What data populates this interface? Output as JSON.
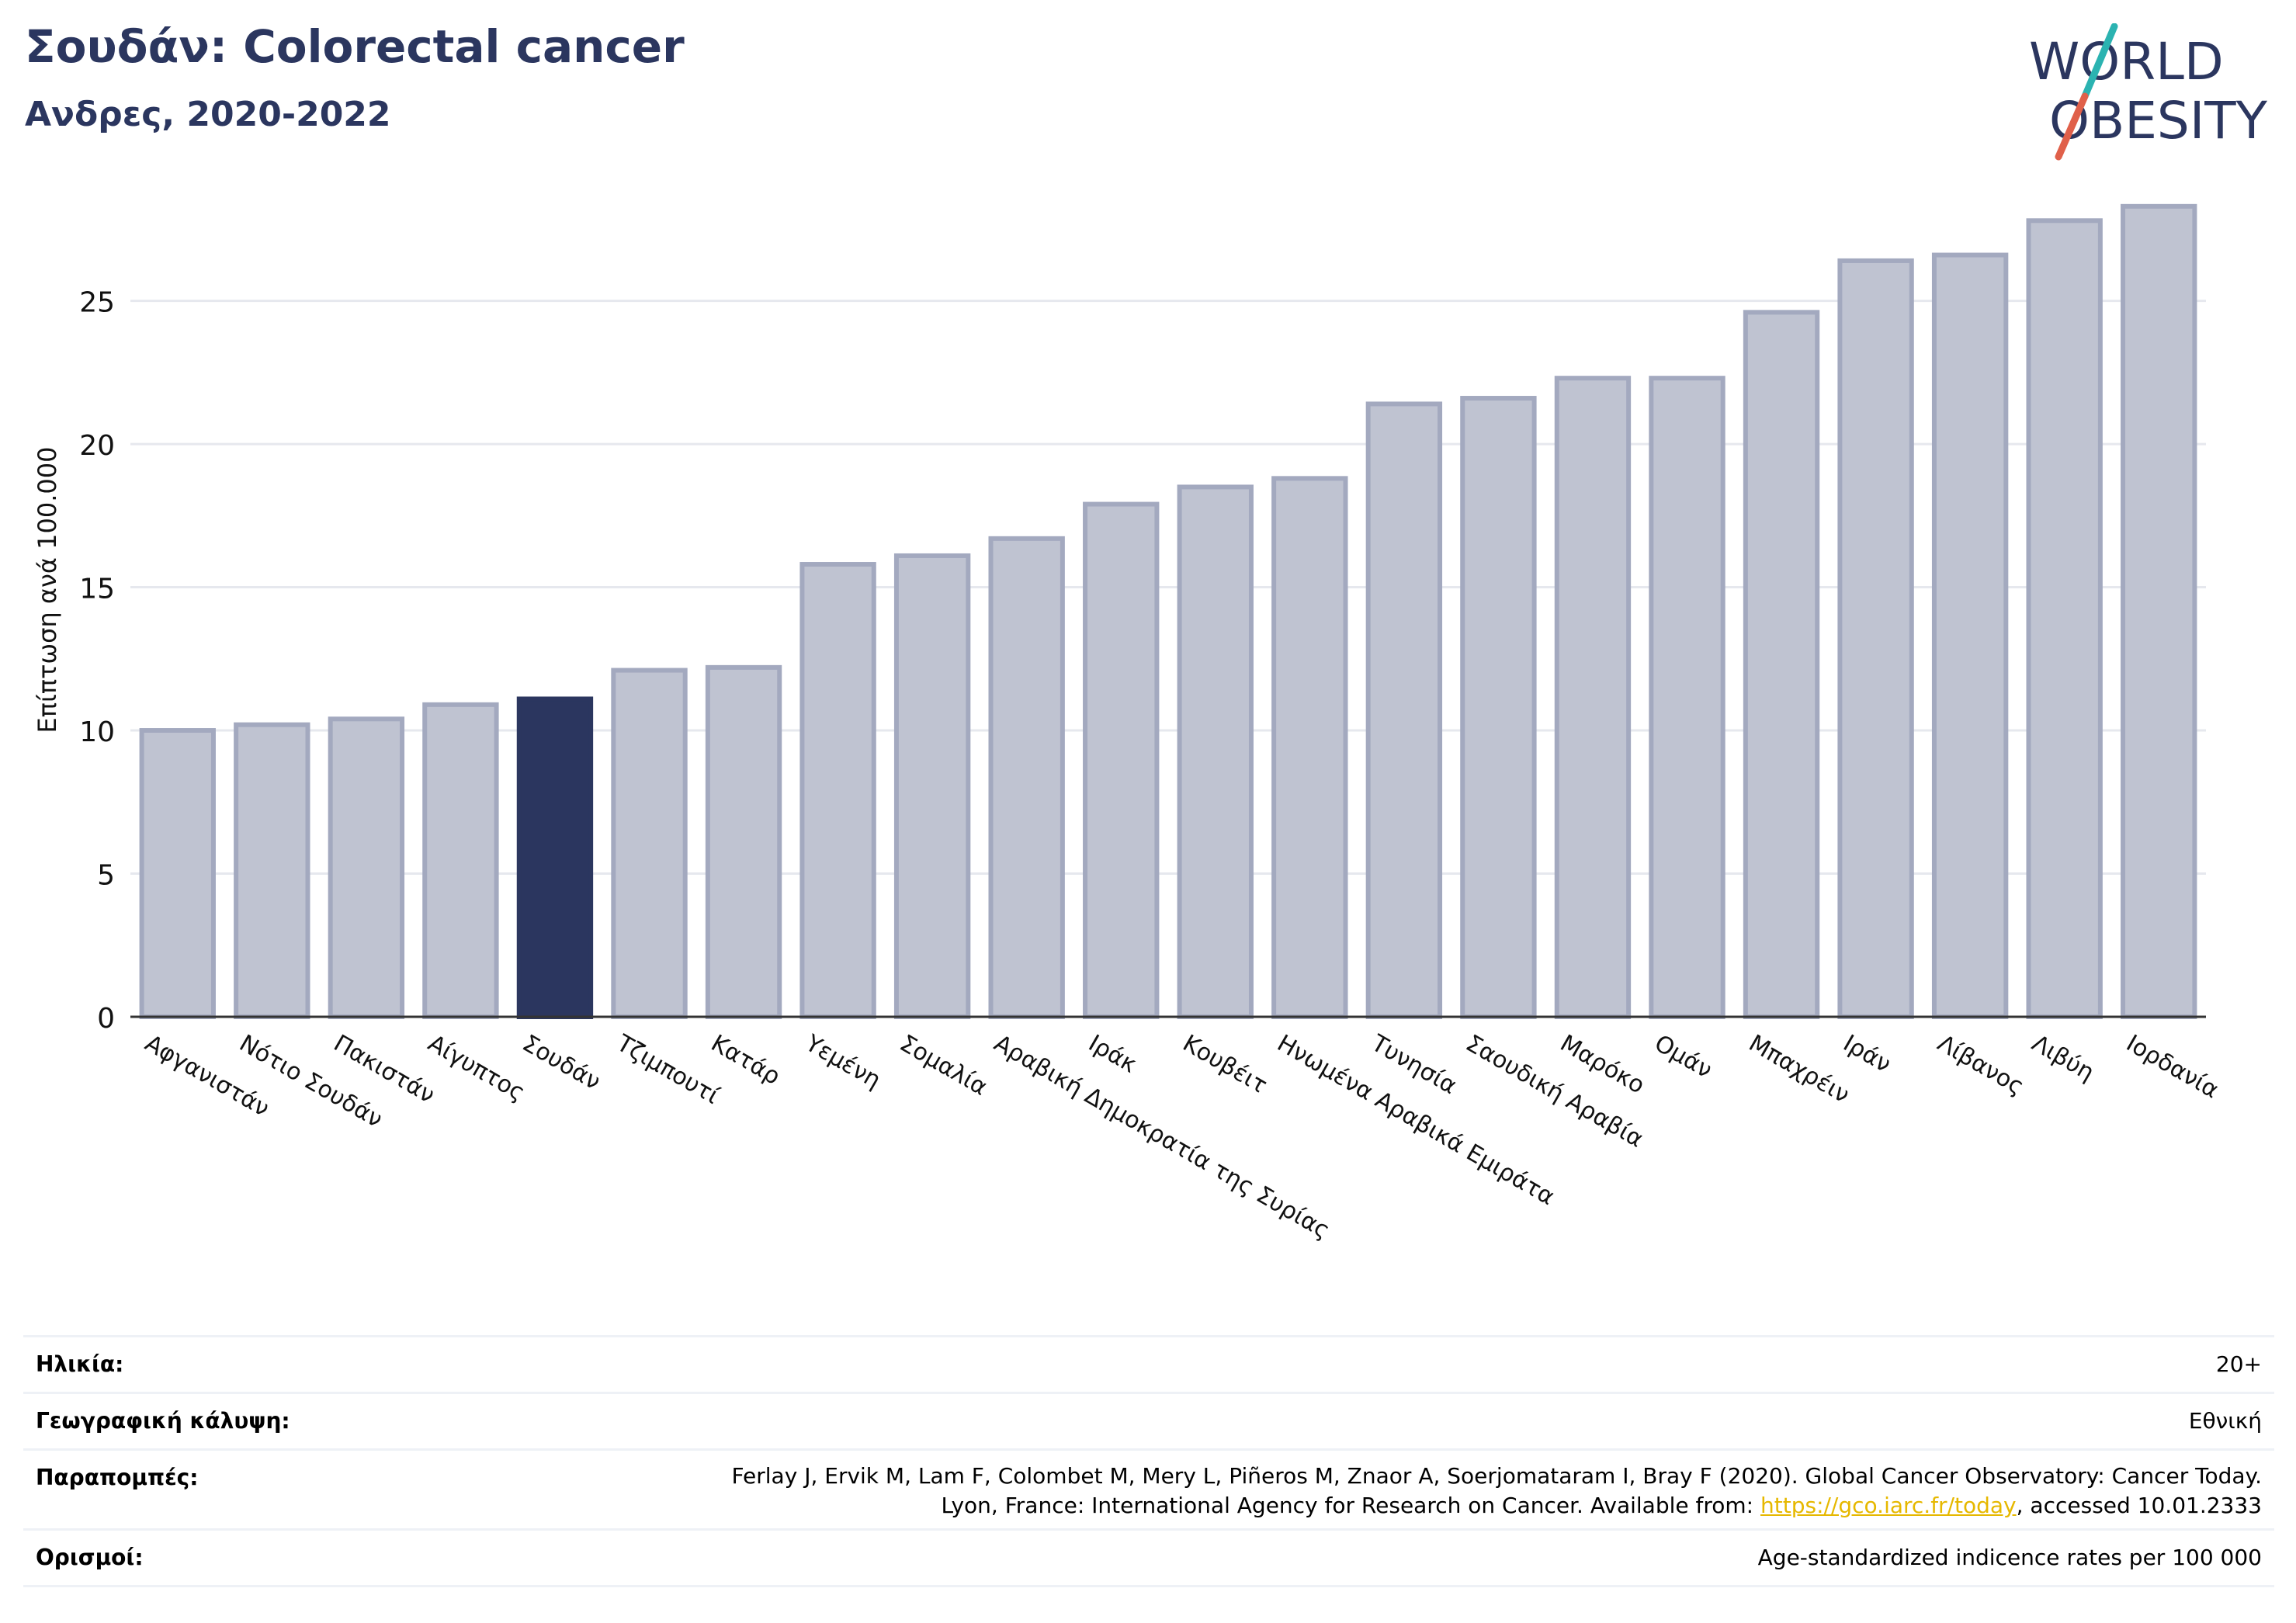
{
  "header": {
    "title": "Σουδάν: Colorectal cancer",
    "subtitle": "Ανδρες, 2020-2022"
  },
  "logo": {
    "line1": "WORLD",
    "line2": "OBESITY",
    "colors": {
      "text": "#2b365f",
      "slash_teal": "#2bb3b1",
      "slash_red": "#e0604a"
    }
  },
  "chart_data": {
    "type": "bar",
    "title": "Σουδάν: Colorectal cancer",
    "subtitle": "Ανδρες, 2020-2022",
    "ylabel": "Επίπτωση ανά 100.000",
    "xlabel": "",
    "ylim": [
      0,
      29
    ],
    "yticks": [
      0,
      5,
      10,
      15,
      20,
      25
    ],
    "grid": true,
    "highlight": "Σουδάν",
    "colors": {
      "bar": "#bfc3d1",
      "bar_edge": "#a3a9bf",
      "highlight": "#2b365f",
      "grid": "#e6e8ee",
      "axis": "#333333"
    },
    "categories": [
      "Αφγανιστάν",
      "Νότιο Σουδάν",
      "Πακιστάν",
      "Αίγυπτος",
      "Σουδάν",
      "Τζιμπουτί",
      "Κατάρ",
      "Υεμένη",
      "Σομαλία",
      "Αραβική Δημοκρατία της Συρίας",
      "Ιράκ",
      "Κουβέιτ",
      "Ηνωμένα Αραβικά Εμιράτα",
      "Τυνησία",
      "Σαουδική Αραβία",
      "Μαρόκο",
      "Ομάν",
      "Μπαχρέιν",
      "Ιράν",
      "Λίβανος",
      "Λιβύη",
      "Ιορδανία"
    ],
    "values": [
      10.0,
      10.2,
      10.4,
      10.9,
      11.1,
      12.1,
      12.2,
      15.8,
      16.1,
      16.7,
      17.9,
      18.5,
      18.8,
      21.4,
      21.6,
      22.3,
      22.3,
      24.6,
      26.4,
      26.6,
      27.8,
      28.3
    ]
  },
  "info": {
    "age_label": "Ηλικία:",
    "age_value": "20+",
    "coverage_label": "Γεωγραφική κάλυψη:",
    "coverage_value": "Εθνική",
    "references_label": "Παραπομπές:",
    "references_line1": "Ferlay J, Ervik M, Lam F, Colombet M, Mery L, Piñeros M, Znaor A, Soerjomataram I, Bray F (2020). Global Cancer Observatory: Cancer Today.",
    "references_line2_prefix": "Lyon, France: International Agency for Research on Cancer. Available from: ",
    "references_link": "https://gco.iarc.fr/today",
    "references_line2_suffix": ", accessed 10.01.2333",
    "definitions_label": "Ορισμοί:",
    "definitions_value": "Age-standardized indicence rates per 100 000"
  }
}
